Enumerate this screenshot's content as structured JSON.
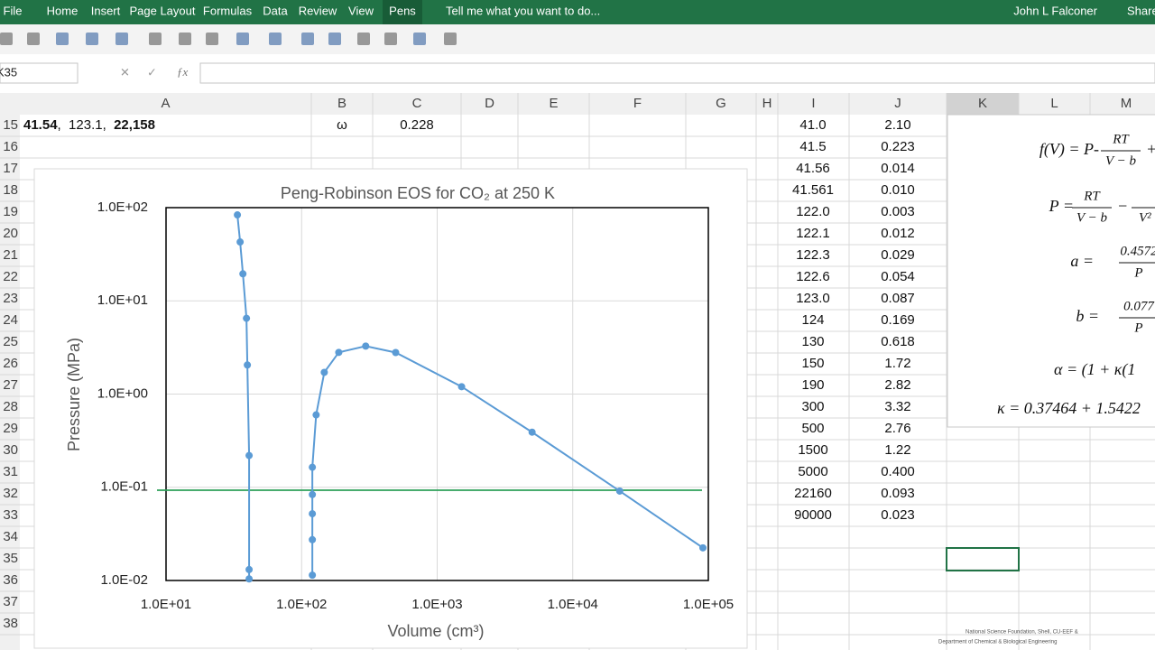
{
  "menu": {
    "items": [
      "File",
      "Home",
      "Insert",
      "Page Layout",
      "Formulas",
      "Data",
      "Review",
      "View",
      "Pens"
    ],
    "tell_me": "Tell me what you want to do...",
    "user": "John L Falconer",
    "share": "Share"
  },
  "formula_bar": {
    "name_box": "K35"
  },
  "sheet": {
    "columns": [
      "A",
      "B",
      "C",
      "D",
      "E",
      "F",
      "G",
      "H",
      "I",
      "J",
      "K",
      "L",
      "M"
    ],
    "rows": [
      15,
      16,
      17,
      18,
      19,
      20,
      21,
      22,
      23,
      24,
      25,
      26,
      27,
      28,
      29,
      30,
      31,
      32,
      33,
      34,
      35,
      36,
      37,
      38
    ],
    "a15": [
      "41.54",
      ",  123.1,  ",
      "22,158"
    ],
    "b15": "ω",
    "c15": "0.228",
    "column_i": [
      "41.0",
      "41.5",
      "41.56",
      "41.561",
      "122.0",
      "122.1",
      "122.3",
      "122.6",
      "123.0",
      "124",
      "130",
      "150",
      "190",
      "300",
      "500",
      "1500",
      "5000",
      "22160",
      "90000"
    ],
    "column_j": [
      "2.10",
      "0.223",
      "0.014",
      "0.010",
      "0.003",
      "0.012",
      "0.029",
      "0.054",
      "0.087",
      "0.169",
      "0.618",
      "1.72",
      "2.82",
      "3.32",
      "2.76",
      "1.22",
      "0.400",
      "0.093",
      "0.023"
    ]
  },
  "chart_data": {
    "type": "scatter",
    "title": "Peng-Robinson EOS for CO₂ at 250 K",
    "x_label": "Volume (cm³)",
    "y_label": "Pressure (MPa)",
    "xscale": "log",
    "yscale": "log",
    "grid": true,
    "xlim": [
      10,
      100000
    ],
    "ylim": [
      0.01,
      100
    ],
    "xticks": [
      {
        "value": 10,
        "label": "1.0E+01"
      },
      {
        "value": 100,
        "label": "1.0E+02"
      },
      {
        "value": 1000,
        "label": "1.0E+03"
      },
      {
        "value": 10000,
        "label": "1.0E+04"
      },
      {
        "value": 100000,
        "label": "1.0E+05"
      }
    ],
    "yticks": [
      {
        "value": 0.01,
        "label": "1.0E-02"
      },
      {
        "value": 0.1,
        "label": "1.0E-01"
      },
      {
        "value": 1,
        "label": "1.0E+00"
      },
      {
        "value": 10,
        "label": "1.0E+01"
      },
      {
        "value": 100,
        "label": "1.0E+02"
      }
    ],
    "series": [
      {
        "color": "#5b9bd5",
        "x": [
          33.6,
          35.2,
          36.9,
          39.2,
          39.8,
          41.0,
          41.0,
          41.0
        ],
        "values": [
          83.6,
          42.8,
          19.5,
          6.5,
          2.05,
          0.219,
          0.0131,
          0.0104
        ]
      },
      {
        "color": "#5b9bd5",
        "x": [
          120,
          120,
          120,
          120,
          120,
          128,
          147,
          188,
          297,
          494,
          1514,
          5012,
          22200,
          91200
        ],
        "values": [
          0.0114,
          0.0274,
          0.052,
          0.0836,
          0.164,
          0.598,
          1.71,
          2.8,
          3.27,
          2.79,
          1.2,
          0.39,
          0.091,
          0.0224
        ]
      }
    ],
    "hline": {
      "value": 0.093,
      "color": "#2ea05a"
    }
  },
  "equations": [
    {
      "lhs": "f(V) = P-",
      "num": "RT",
      "den": "V − b",
      "rest": "+"
    },
    {
      "lhs": "P =",
      "num": "RT",
      "den": "V − b",
      "rest": "−",
      "den2": "V²"
    },
    {
      "lhs": "a =",
      "num": "0.4572",
      "den": "P"
    },
    {
      "lhs": "b =",
      "num": "0.077",
      "den": "P"
    },
    {
      "lhs": "α = (1 + κ(1"
    },
    {
      "lhs": "κ = 0.37464 + 1.5422"
    }
  ],
  "footer": [
    "National Science Foundation, Shell, CU-EEF &",
    "Department of Chemical & Biological Engineering"
  ]
}
